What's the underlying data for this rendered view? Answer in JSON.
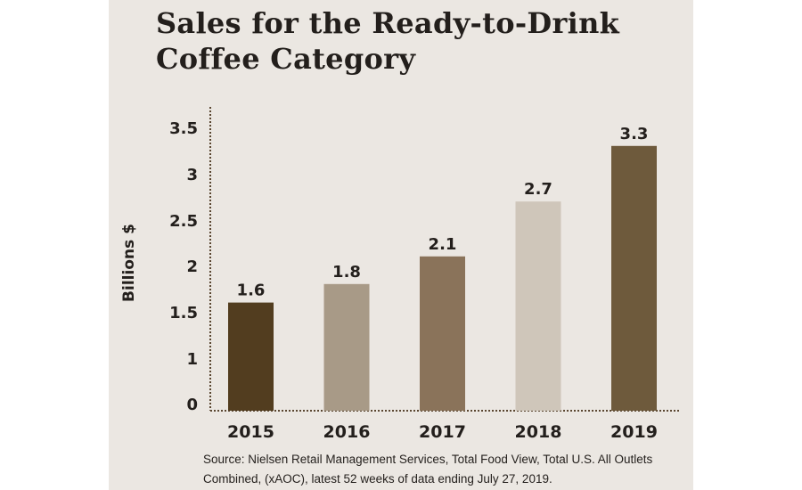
{
  "chart_data": {
    "type": "bar",
    "title_line1": "Sales for the Ready-to-Drink",
    "title_line2": "Coffee Category",
    "ylabel": "Billions $",
    "xlabel": "",
    "categories": [
      "2015",
      "2016",
      "2017",
      "2018",
      "2019"
    ],
    "values": [
      1.6,
      1.8,
      2.1,
      2.7,
      3.3
    ],
    "data_labels": [
      "1.6",
      "1.8",
      "2.1",
      "2.7",
      "3.3"
    ],
    "bar_colors": [
      "#523d1f",
      "#a89a87",
      "#8a735a",
      "#cfc6ba",
      "#6e5a3c"
    ],
    "yticks": [
      "0",
      "1",
      "1.5",
      "2",
      "2.5",
      "3",
      "3.5"
    ],
    "ylim": [
      0,
      3.5
    ],
    "grid": false,
    "source_line1": "Source: Nielsen Retail Management Services, Total Food View, Total U.S. All Outlets",
    "source_line2": "Combined, (xAOC), latest 52 weeks of data ending July 27, 2019."
  }
}
